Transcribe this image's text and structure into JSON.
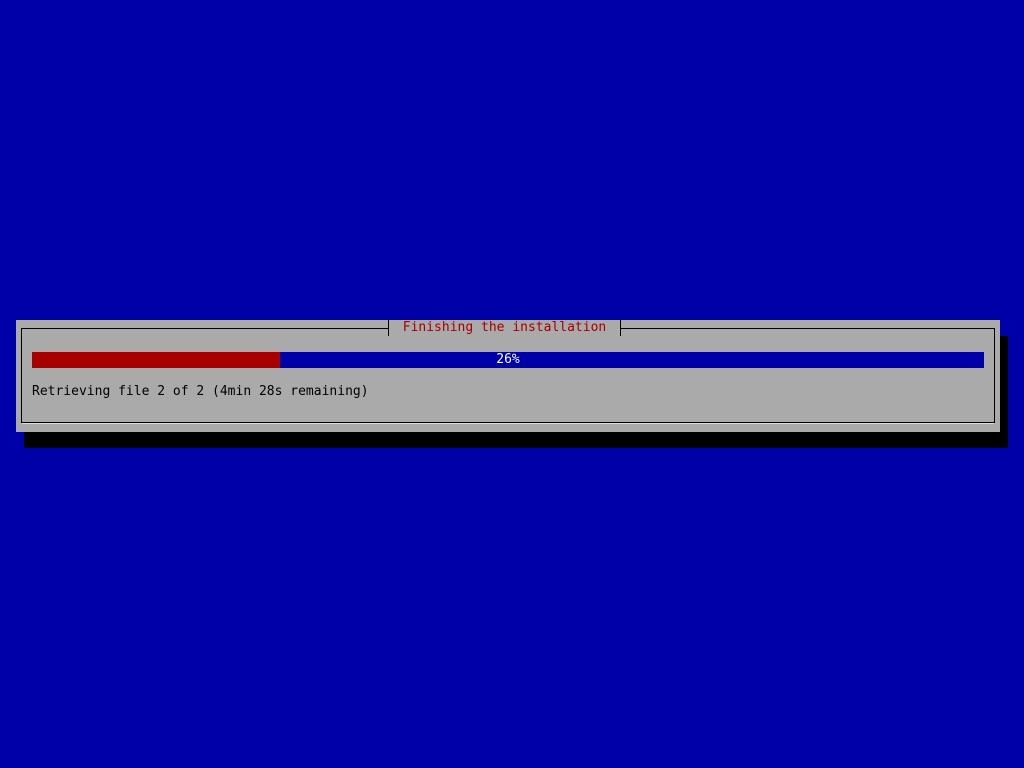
{
  "dialog": {
    "title": "Finishing the installation",
    "progress": {
      "percent": 26,
      "label": "26%"
    },
    "status": "Retrieving file 2 of 2 (4min 28s remaining)"
  },
  "colors": {
    "background": "#0000a8",
    "dialog": "#aaaaaa",
    "title": "#a80000",
    "progress_fill": "#a80000",
    "progress_track": "#0000a8"
  }
}
